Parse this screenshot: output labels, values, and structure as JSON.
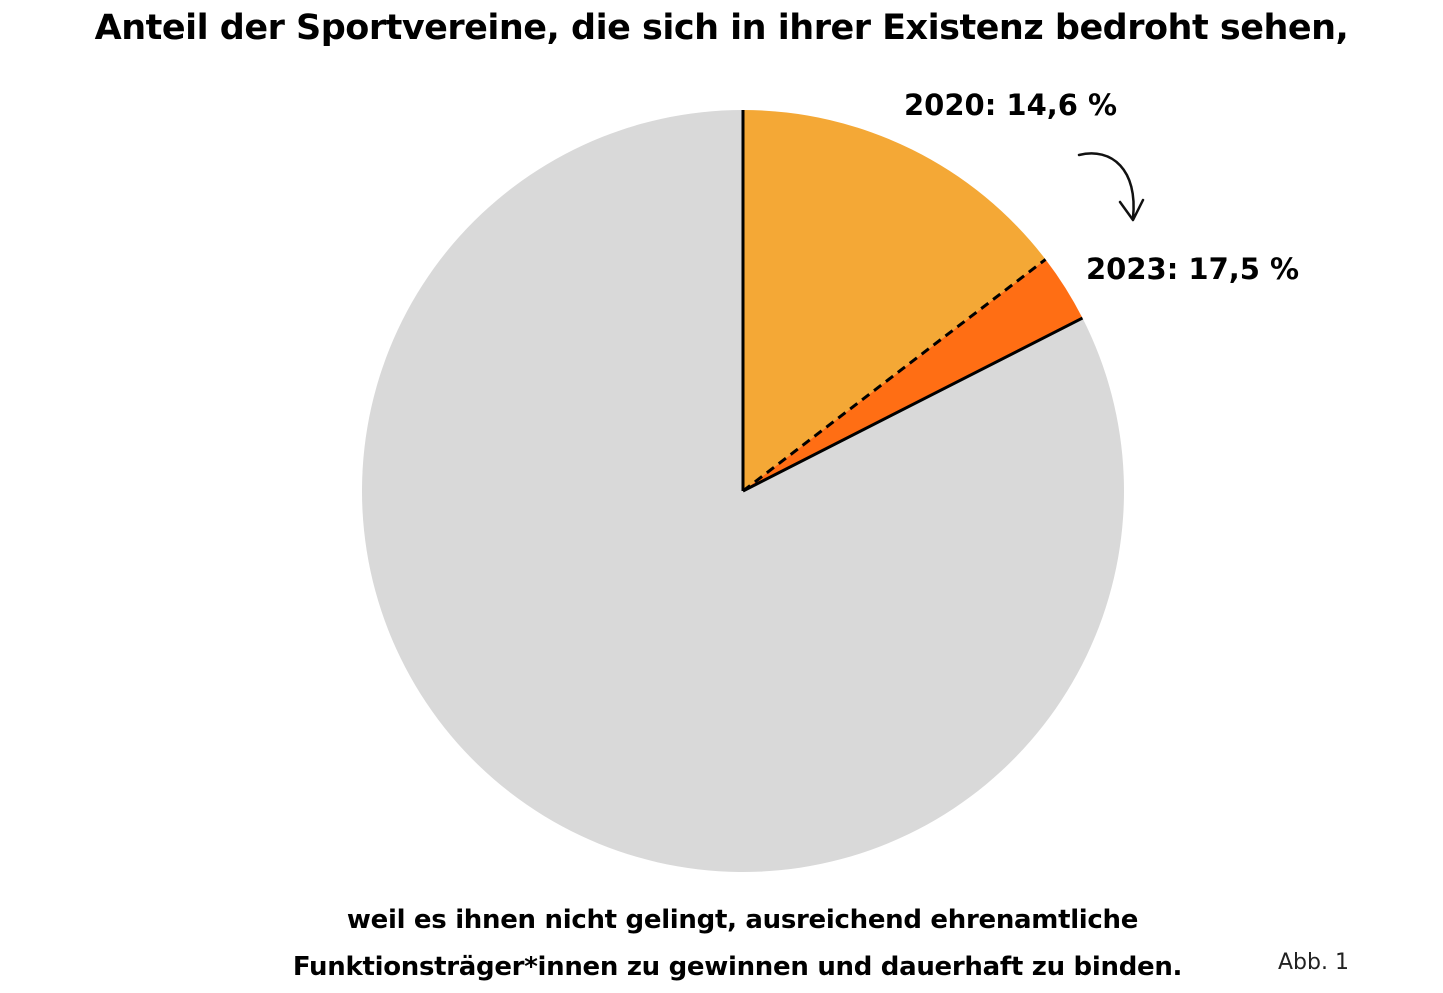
{
  "header": {
    "title": "Anteil der Sportvereine, die sich in ihrer Existenz bedroht sehen,"
  },
  "footer": {
    "caption_line1": "weil es ihnen nicht gelingt, ausreichend ehrenamtliche",
    "caption_line2": "Funktionsträger*innen zu gewinnen und dauerhaft zu binden.",
    "figure_number": "Abb. 1"
  },
  "chart_data": {
    "type": "pie",
    "unit": "%",
    "start_angle": "12 o'clock, clockwise",
    "slices": [
      {
        "label": "2020: 14,6 %",
        "value": 14.6,
        "color": "#F4A836"
      },
      {
        "label": "",
        "value": 2.9,
        "color": "#FF6E14"
      },
      {
        "label": "",
        "value": 82.5,
        "color": "#D9D9D9"
      }
    ],
    "annotations": [
      {
        "label": "2023: 17,5 %",
        "value": 17.5
      }
    ],
    "legend": "none",
    "grid": false
  }
}
